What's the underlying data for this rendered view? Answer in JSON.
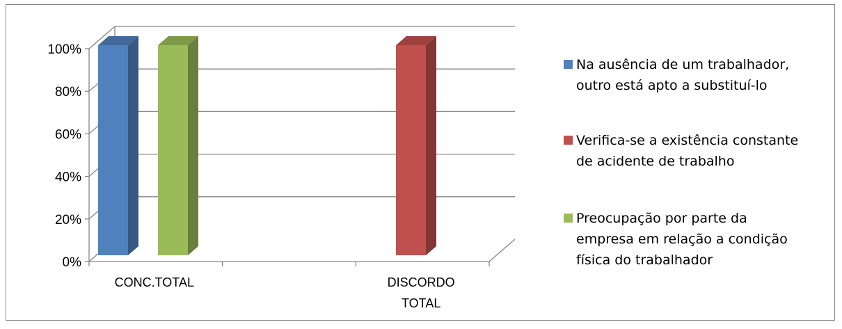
{
  "chart_data": {
    "type": "bar",
    "style": "3d-clustered-column",
    "categories": [
      "CONC.TOTAL",
      "DISCORDO TOTAL"
    ],
    "category_lines": [
      [
        "CONC.TOTAL"
      ],
      [
        "DISCORDO",
        "TOTAL"
      ]
    ],
    "series": [
      {
        "name": "Na ausência de um trabalhador, outro está apto a substituí-lo",
        "legend_lines": [
          "Na ausência de um trabalhador,",
          "outro está apto a substituí-lo"
        ],
        "values": [
          1.0,
          0
        ],
        "color": "#4F81BD"
      },
      {
        "name": "Verifica-se a existência constante de acidente de trabalho",
        "legend_lines": [
          "Verifica-se a existência constante",
          "de acidente de trabalho"
        ],
        "values": [
          0,
          1.0
        ],
        "color": "#C0504D"
      },
      {
        "name": "Preocupação por parte da empresa em relação a condição física do trabalhador",
        "legend_lines": [
          "Preocupação por parte da",
          "empresa em relação a condição",
          "física do trabalhador"
        ],
        "values": [
          1.0,
          0
        ],
        "color": "#9BBB59"
      }
    ],
    "y_ticks": [
      "0%",
      "20%",
      "40%",
      "60%",
      "80%",
      "100%"
    ],
    "ylim": [
      0,
      1
    ],
    "grid": true,
    "legend_position": "right"
  }
}
